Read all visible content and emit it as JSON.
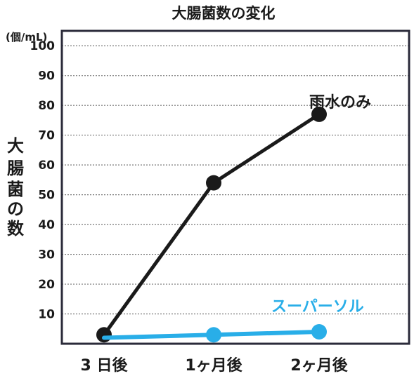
{
  "chart_data": {
    "type": "line",
    "title": "大腸菌数の変化",
    "unit_label": "(個/mL)",
    "ylabel": "大腸菌の数",
    "xlabel": "",
    "categories": [
      "3 日後",
      "1ヶ月後",
      "2ヶ月後"
    ],
    "ylim": [
      0,
      105
    ],
    "yticks": [
      10,
      20,
      30,
      40,
      50,
      60,
      70,
      80,
      90,
      100
    ],
    "grid": true,
    "series": [
      {
        "name": "雨水のみ",
        "values": [
          3,
          54,
          77
        ],
        "color": "#1a1a1a"
      },
      {
        "name": "スーパーソル",
        "values": [
          2,
          3,
          4
        ],
        "color": "#29aee8"
      }
    ]
  }
}
